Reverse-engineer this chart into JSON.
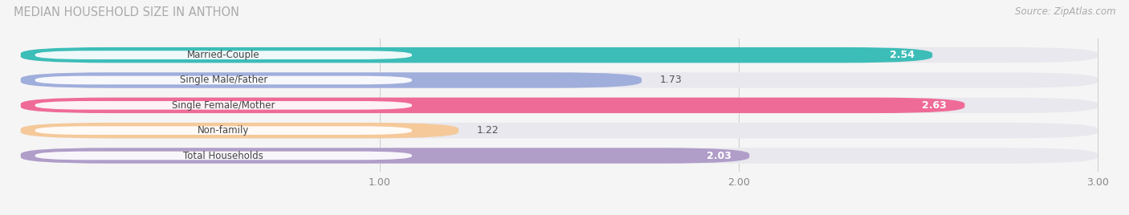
{
  "title": "MEDIAN HOUSEHOLD SIZE IN ANTHON",
  "source": "Source: ZipAtlas.com",
  "categories": [
    "Married-Couple",
    "Single Male/Father",
    "Single Female/Mother",
    "Non-family",
    "Total Households"
  ],
  "values": [
    2.54,
    1.73,
    2.63,
    1.22,
    2.03
  ],
  "bar_colors": [
    "#3dbdb8",
    "#a0aedc",
    "#ef6b97",
    "#f5c99a",
    "#b09dc8"
  ],
  "bar_bg_color": "#e8e8ee",
  "value_text_colors": [
    "#ffffff",
    "#555555",
    "#ffffff",
    "#555555",
    "#555555"
  ],
  "xlim_data": [
    0,
    3.0
  ],
  "xticks": [
    1.0,
    2.0,
    3.0
  ],
  "figsize": [
    14.06,
    2.68
  ],
  "dpi": 100,
  "label_bg_color": "#ffffff",
  "title_color": "#aaaaaa",
  "source_color": "#aaaaaa"
}
